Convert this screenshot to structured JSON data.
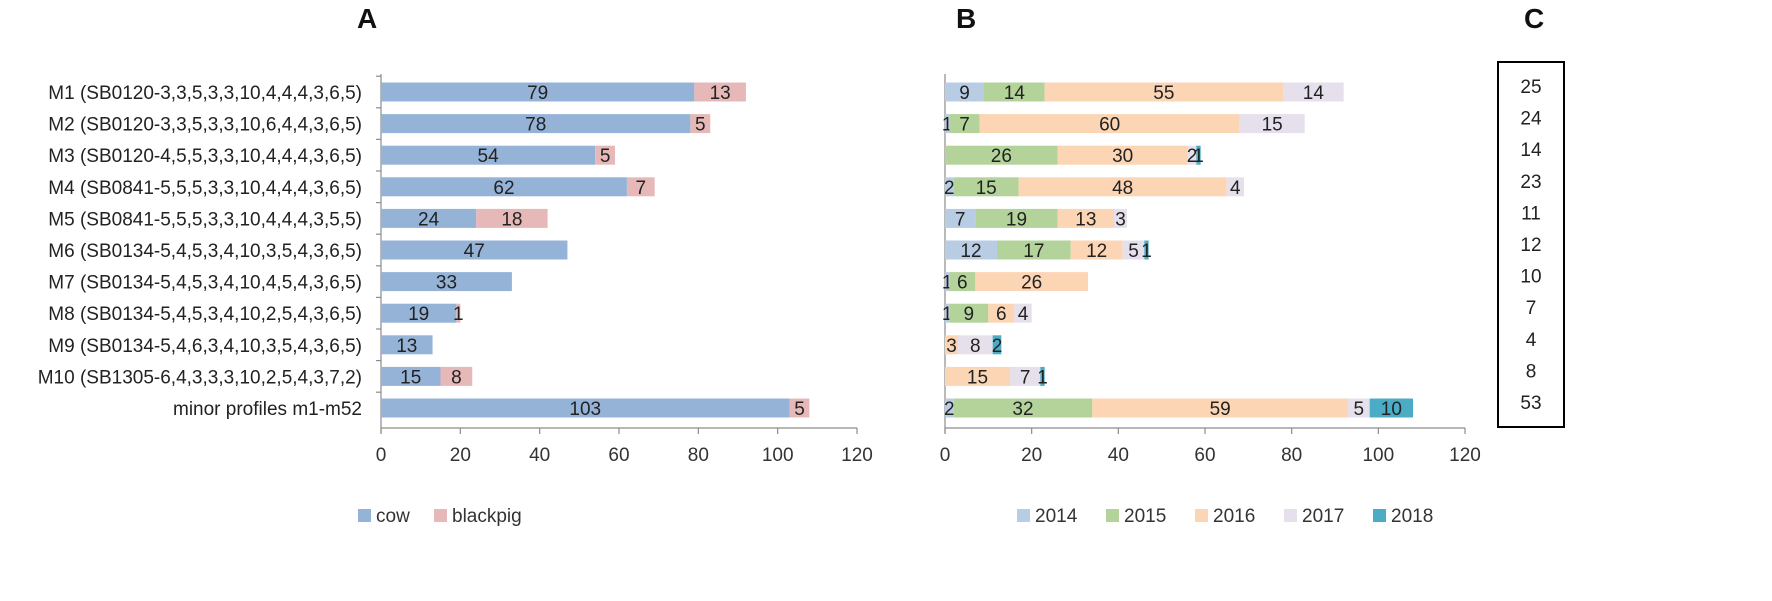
{
  "chart_data": [
    {
      "panel": "A",
      "type": "bar",
      "orientation": "horizontal",
      "stacked": true,
      "title": "",
      "xlabel": "",
      "ylabel": "",
      "xlim": [
        0,
        120
      ],
      "xticks": [
        0,
        20,
        40,
        60,
        80,
        100,
        120
      ],
      "categories": [
        "M1 (SB0120-3,3,5,3,3,10,4,4,4,3,6,5)",
        "M2 (SB0120-3,3,5,3,3,10,6,4,4,3,6,5)",
        "M3 (SB0120-4,5,5,3,3,10,4,4,4,3,6,5)",
        "M4 (SB0841-5,5,5,3,3,10,4,4,4,3,6,5)",
        "M5 (SB0841-5,5,5,3,3,10,4,4,4,3,5,5)",
        "M6 (SB0134-5,4,5,3,4,10,3,5,4,3,6,5)",
        "M7 (SB0134-5,4,5,3,4,10,4,5,4,3,6,5)",
        "M8 (SB0134-5,4,5,3,4,10,2,5,4,3,6,5)",
        "M9 (SB0134-5,4,6,3,4,10,3,5,4,3,6,5)",
        "M10 (SB1305-6,4,3,3,3,10,2,5,4,3,7,2)",
        "minor profiles m1-m52"
      ],
      "series": [
        {
          "name": "cow",
          "color": "#95b3d7",
          "values": [
            79,
            78,
            54,
            62,
            24,
            47,
            33,
            19,
            13,
            15,
            103
          ]
        },
        {
          "name": "blackpig",
          "color": "#e6b9b8",
          "values": [
            13,
            5,
            5,
            7,
            18,
            0,
            0,
            1,
            0,
            8,
            5
          ]
        }
      ],
      "legend": "bottom"
    },
    {
      "panel": "B",
      "type": "bar",
      "orientation": "horizontal",
      "stacked": true,
      "title": "",
      "xlabel": "",
      "ylabel": "",
      "xlim": [
        0,
        120
      ],
      "xticks": [
        0,
        20,
        40,
        60,
        80,
        100,
        120
      ],
      "series": [
        {
          "name": "2014",
          "color": "#b8cce4",
          "values": [
            9,
            1,
            0,
            2,
            7,
            12,
            1,
            1,
            0,
            0,
            2
          ],
          "labels": [
            "9",
            "1",
            "",
            "2",
            "7",
            "12",
            "1",
            "1",
            "",
            "",
            "2"
          ]
        },
        {
          "name": "2015",
          "color": "#b3d39a",
          "values": [
            14,
            7,
            26,
            15,
            19,
            17,
            6,
            9,
            0,
            0,
            32
          ],
          "labels": [
            "14",
            "7",
            "26",
            "15",
            "19",
            "17",
            "6",
            "9",
            "",
            "",
            "32"
          ]
        },
        {
          "name": "2016",
          "color": "#fcd5b5",
          "values": [
            55,
            60,
            30,
            48,
            13,
            12,
            26,
            6,
            3,
            15,
            59
          ],
          "labels": [
            "55",
            "60",
            "30",
            "48",
            "13",
            "12",
            "26",
            "6",
            "3",
            "15",
            "59"
          ]
        },
        {
          "name": "2017",
          "color": "#e6e0ec",
          "values": [
            14,
            15,
            2,
            4,
            3,
            5,
            0,
            4,
            8,
            7,
            5
          ],
          "labels": [
            "14",
            "15",
            "2",
            "4",
            "3",
            "5",
            "",
            "4",
            "8",
            "7",
            "5"
          ]
        },
        {
          "name": "2018",
          "color": "#4bacc6",
          "values": [
            0,
            0,
            1,
            0,
            0,
            1,
            0,
            0,
            2,
            1,
            10
          ],
          "labels": [
            "",
            "",
            "1",
            "",
            "",
            "1",
            "",
            "",
            "2",
            "1",
            "10"
          ]
        }
      ],
      "legend": "bottom"
    },
    {
      "panel": "C",
      "type": "table",
      "values": [
        "25",
        "24",
        "14",
        "23",
        "11",
        "12",
        "10",
        "7",
        "4",
        "8",
        "53"
      ]
    }
  ]
}
